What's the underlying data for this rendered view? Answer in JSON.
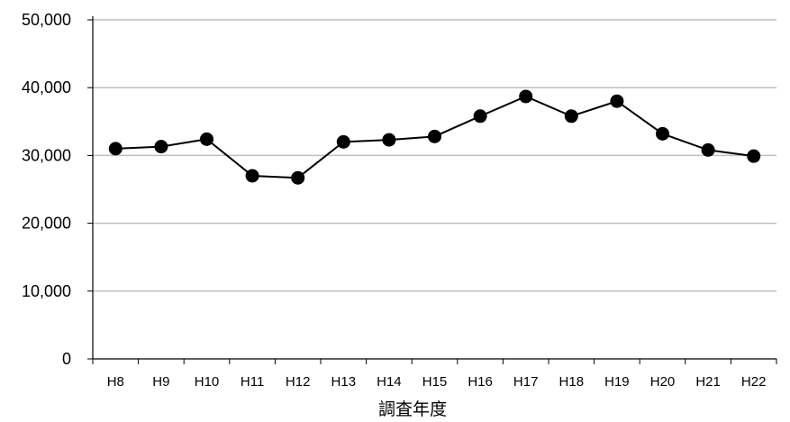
{
  "chart_data": {
    "type": "line",
    "title": "",
    "xlabel": "調査年度",
    "ylabel": "",
    "categories": [
      "H8",
      "H9",
      "H10",
      "H11",
      "H12",
      "H13",
      "H14",
      "H15",
      "H16",
      "H17",
      "H18",
      "H19",
      "H20",
      "H21",
      "H22"
    ],
    "series": [
      {
        "values": [
          31000,
          31300,
          32400,
          27000,
          26700,
          32000,
          32300,
          32800,
          35800,
          38700,
          35800,
          38000,
          33200,
          30800,
          29900
        ]
      }
    ],
    "ylim": [
      0,
      50000
    ],
    "y_ticks": [
      0,
      10000,
      20000,
      30000,
      40000,
      50000
    ],
    "y_tick_labels": [
      "0",
      "10,000",
      "20,000",
      "30,000",
      "40,000",
      "50,000"
    ],
    "grid": true,
    "legend": "none",
    "colors": {
      "line": "#000000",
      "marker": "#000000",
      "gridline": "#bfbfbf",
      "axis": "#000000"
    }
  }
}
